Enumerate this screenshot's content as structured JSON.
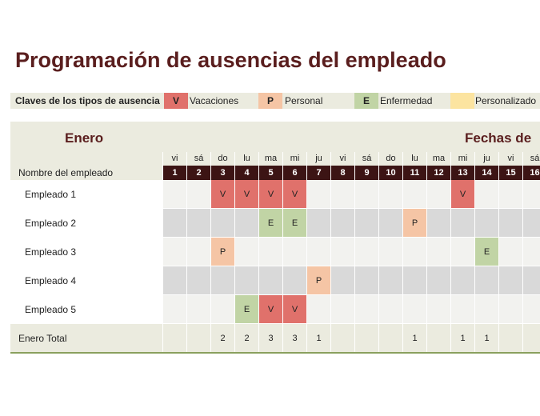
{
  "title": "Programación de ausencias del empleado",
  "legend": {
    "label": "Claves de los tipos de ausencia",
    "items": [
      {
        "code": "V",
        "label": "Vacaciones",
        "color": "#e0716b"
      },
      {
        "code": "P",
        "label": "Personal",
        "color": "#f5c5a5"
      },
      {
        "code": "E",
        "label": "Enfermedad",
        "color": "#c1d4a5"
      },
      {
        "code": "",
        "label": "Personalizado",
        "color": "#fce4a0"
      }
    ]
  },
  "schedule": {
    "month": "Enero",
    "dates_header": "Fechas de",
    "name_header": "Nombre del empleado",
    "weekdays": [
      "vi",
      "sá",
      "do",
      "lu",
      "ma",
      "mi",
      "ju",
      "vi",
      "sá",
      "do",
      "lu",
      "ma",
      "mi",
      "ju",
      "vi",
      "sá"
    ],
    "days": [
      "1",
      "2",
      "3",
      "4",
      "5",
      "6",
      "7",
      "8",
      "9",
      "10",
      "11",
      "12",
      "13",
      "14",
      "15",
      "16"
    ],
    "employees": [
      {
        "name": "Empleado 1",
        "cells": [
          "",
          "",
          "V",
          "V",
          "V",
          "V",
          "",
          "",
          "",
          "",
          "",
          "",
          "V",
          "",
          "",
          ""
        ]
      },
      {
        "name": "Empleado 2",
        "cells": [
          "",
          "",
          "",
          "",
          "E",
          "E",
          "",
          "",
          "",
          "",
          "P",
          "",
          "",
          "",
          "",
          ""
        ]
      },
      {
        "name": "Empleado 3",
        "cells": [
          "",
          "",
          "P",
          "",
          "",
          "",
          "",
          "",
          "",
          "",
          "",
          "",
          "",
          "E",
          "",
          ""
        ]
      },
      {
        "name": "Empleado 4",
        "cells": [
          "",
          "",
          "",
          "",
          "",
          "",
          "P",
          "",
          "",
          "",
          "",
          "",
          "",
          "",
          "",
          ""
        ]
      },
      {
        "name": "Empleado 5",
        "cells": [
          "",
          "",
          "",
          "E",
          "V",
          "V",
          "",
          "",
          "",
          "",
          "",
          "",
          "",
          "",
          "",
          ""
        ]
      }
    ],
    "total_label": "Enero Total",
    "totals": [
      "",
      "",
      "2",
      "2",
      "3",
      "3",
      "1",
      "",
      "",
      "",
      "1",
      "",
      "1",
      "1",
      "",
      ""
    ]
  }
}
